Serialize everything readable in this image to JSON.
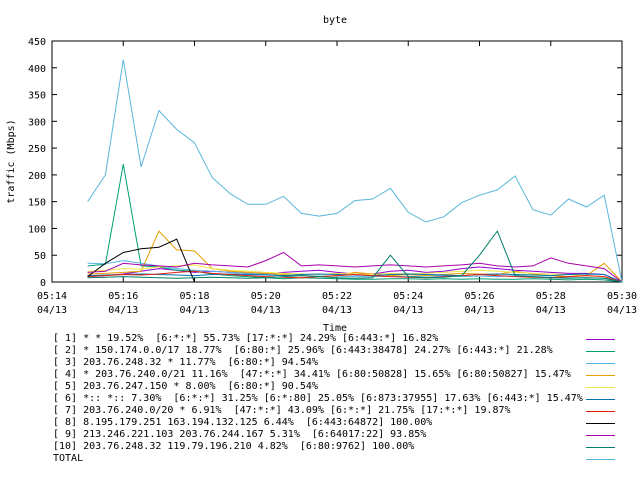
{
  "chart_data": {
    "type": "line",
    "title": "byte",
    "xlabel": "Time",
    "ylabel": "traffic (Mbps)",
    "ylim": [
      0,
      450
    ],
    "yticks": [
      0,
      50,
      100,
      150,
      200,
      250,
      300,
      350,
      400,
      450
    ],
    "xlim": [
      "05:14",
      "05:30"
    ],
    "xticks": [
      {
        "time": "05:14",
        "date": "04/13"
      },
      {
        "time": "05:16",
        "date": "04/13"
      },
      {
        "time": "05:18",
        "date": "04/13"
      },
      {
        "time": "05:20",
        "date": "04/13"
      },
      {
        "time": "05:22",
        "date": "04/13"
      },
      {
        "time": "05:24",
        "date": "04/13"
      },
      {
        "time": "05:26",
        "date": "04/13"
      },
      {
        "time": "05:28",
        "date": "04/13"
      },
      {
        "time": "05:30",
        "date": "04/13"
      }
    ],
    "x": [
      "05:15:00",
      "05:15:30",
      "05:16:00",
      "05:16:30",
      "05:17:00",
      "05:17:30",
      "05:18:00",
      "05:18:30",
      "05:19:00",
      "05:19:30",
      "05:20:00",
      "05:20:30",
      "05:21:00",
      "05:21:30",
      "05:22:00",
      "05:22:30",
      "05:23:00",
      "05:23:30",
      "05:24:00",
      "05:24:30",
      "05:25:00",
      "05:25:30",
      "05:26:00",
      "05:26:30",
      "05:27:00",
      "05:27:30",
      "05:28:00",
      "05:28:30",
      "05:29:00",
      "05:29:30",
      "05:30:00"
    ],
    "grid": false,
    "legend_placement": "below",
    "series": [
      {
        "name": "[ 1] * * 19.52%  [6:*:*] 55.73% [17:*:*] 24.29% [6:443:*] 16.82%",
        "color": "#9400d3",
        "values": [
          10,
          12,
          15,
          20,
          25,
          22,
          18,
          20,
          18,
          16,
          15,
          18,
          20,
          22,
          18,
          15,
          15,
          20,
          22,
          18,
          20,
          25,
          28,
          25,
          22,
          20,
          18,
          16,
          16,
          14,
          0
        ]
      },
      {
        "name": "[ 2] * 150.174.0.0/17 18.77%  [6:80:*] 25.96% [6:443:38478] 24.27% [6:443:*] 21.28%",
        "color": "#009e73",
        "values": [
          30,
          33,
          220,
          30,
          28,
          22,
          20,
          15,
          12,
          10,
          8,
          6,
          8,
          7,
          6,
          5,
          5,
          6,
          6,
          5,
          6,
          5,
          6,
          5,
          5,
          6,
          5,
          4,
          5,
          4,
          0
        ]
      },
      {
        "name": "[ 3] 203.76.248.32 * 11.77%  [6:80:*] 94.54%",
        "color": "#56b4e9",
        "values": [
          35,
          34,
          40,
          35,
          30,
          25,
          22,
          20,
          18,
          16,
          14,
          12,
          12,
          11,
          11,
          10,
          10,
          11,
          10,
          11,
          12,
          10,
          11,
          10,
          12,
          10,
          9,
          8,
          8,
          7,
          0
        ]
      },
      {
        "name": "[ 4] * 203.76.240.0/21 11.16%  [47:*:*] 34.41% [6:80:50828] 15.65% [6:80:50827] 15.47%",
        "color": "#e69f00",
        "values": [
          15,
          16,
          18,
          20,
          95,
          60,
          58,
          25,
          20,
          18,
          16,
          14,
          12,
          10,
          12,
          18,
          15,
          12,
          14,
          12,
          14,
          16,
          15,
          14,
          20,
          15,
          12,
          10,
          12,
          35,
          0
        ]
      },
      {
        "name": "[ 5] 203.76.247.150 * 8.00%  [6:80:*] 90.54%",
        "color": "#f0e442",
        "values": [
          20,
          22,
          25,
          24,
          28,
          30,
          32,
          25,
          22,
          20,
          18,
          16,
          15,
          14,
          16,
          15,
          14,
          16,
          15,
          16,
          18,
          20,
          22,
          20,
          18,
          16,
          15,
          14,
          12,
          10,
          0
        ]
      },
      {
        "name": "[ 6] *:: *:: 7.30%  [6:*:*] 31.25% [6:*:80] 25.05% [6:873:37955] 17.63% [6:443:*] 15.47%",
        "color": "#0072b2",
        "values": [
          12,
          13,
          14,
          15,
          14,
          13,
          12,
          14,
          15,
          14,
          13,
          12,
          14,
          15,
          14,
          13,
          12,
          14,
          15,
          14,
          13,
          12,
          14,
          15,
          14,
          13,
          12,
          14,
          15,
          14,
          0
        ]
      },
      {
        "name": "[ 7] 203.76.240.0/20 * 6.91%  [47:*:*] 43.09% [6:*:*] 21.75% [17:*:*] 19.87%",
        "color": "#e51e10",
        "values": [
          10,
          12,
          14,
          13,
          15,
          18,
          20,
          16,
          14,
          12,
          10,
          9,
          8,
          10,
          12,
          14,
          12,
          10,
          9,
          8,
          10,
          12,
          14,
          12,
          10,
          9,
          8,
          10,
          12,
          10,
          0
        ]
      },
      {
        "name": "[ 8] 8.195.179.251 163.194.132.125 6.44%  [6:443:64872] 100.00%",
        "color": "#000000",
        "values": [
          10,
          35,
          55,
          62,
          65,
          80,
          0,
          0,
          0,
          0,
          0,
          0,
          0,
          0,
          0,
          0,
          0,
          0,
          0,
          0,
          0,
          0,
          0,
          0,
          0,
          0,
          0,
          0,
          0,
          0,
          0
        ]
      },
      {
        "name": "[ 9] 213.246.221.103 203.76.244.167 5.31%  [6:64017:22] 93.85%",
        "color": "#aa00aa",
        "values": [
          18,
          20,
          35,
          32,
          30,
          28,
          35,
          32,
          30,
          28,
          40,
          55,
          30,
          32,
          30,
          28,
          30,
          32,
          30,
          28,
          30,
          32,
          35,
          30,
          28,
          30,
          45,
          35,
          30,
          25,
          0
        ]
      },
      {
        "name": "[10] 203.76.248.32 119.79.196.210 4.82%  [6:80:9762] 100.00%",
        "color": "#00806a",
        "values": [
          8,
          9,
          10,
          9,
          8,
          7,
          8,
          9,
          8,
          7,
          8,
          10,
          12,
          10,
          8,
          7,
          8,
          50,
          10,
          8,
          9,
          12,
          50,
          95,
          12,
          10,
          8,
          7,
          8,
          7,
          0
        ]
      },
      {
        "name": "TOTAL",
        "color": "#59b6db",
        "values": [
          150,
          200,
          415,
          215,
          320,
          285,
          260,
          195,
          165,
          145,
          145,
          160,
          128,
          123,
          128,
          152,
          155,
          175,
          130,
          112,
          122,
          148,
          162,
          172,
          198,
          135,
          125,
          155,
          140,
          162,
          0
        ]
      }
    ]
  }
}
